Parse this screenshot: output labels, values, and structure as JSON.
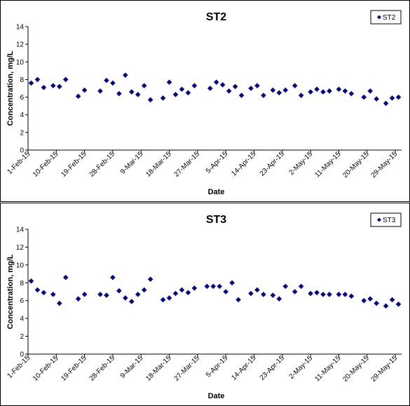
{
  "chart_data": [
    {
      "type": "scatter",
      "title": "ST2",
      "xlabel": "Date",
      "ylabel": "Concentration, mg/L",
      "ylim": [
        0,
        14
      ],
      "yticks": [
        "0",
        "2",
        "4",
        "6",
        "8",
        "10",
        "12",
        "14"
      ],
      "xlim": [
        "2015-02-01",
        "2015-05-31"
      ],
      "xticks": [
        "1-Feb-15",
        "10-Feb-15",
        "19-Feb-15",
        "28-Feb-15",
        "9-Mar-15",
        "18-Mar-15",
        "27-Mar-15",
        "5-Apr-15",
        "14-Apr-15",
        "23-Apr-15",
        "2-May-15",
        "11-May-15",
        "20-May-15",
        "29-May-15"
      ],
      "legend": "top-right",
      "grid": false,
      "color": "#0a0a7a",
      "series": [
        {
          "name": "ST2",
          "x": [
            "2015-02-02",
            "2015-02-04",
            "2015-02-06",
            "2015-02-09",
            "2015-02-11",
            "2015-02-13",
            "2015-02-17",
            "2015-02-19",
            "2015-02-24",
            "2015-02-26",
            "2015-02-28",
            "2015-03-02",
            "2015-03-04",
            "2015-03-06",
            "2015-03-08",
            "2015-03-10",
            "2015-03-12",
            "2015-03-16",
            "2015-03-18",
            "2015-03-20",
            "2015-03-22",
            "2015-03-24",
            "2015-03-26",
            "2015-03-31",
            "2015-04-02",
            "2015-04-04",
            "2015-04-06",
            "2015-04-08",
            "2015-04-10",
            "2015-04-13",
            "2015-04-15",
            "2015-04-17",
            "2015-04-20",
            "2015-04-22",
            "2015-04-24",
            "2015-04-27",
            "2015-04-29",
            "2015-05-02",
            "2015-05-04",
            "2015-05-06",
            "2015-05-08",
            "2015-05-11",
            "2015-05-13",
            "2015-05-15",
            "2015-05-19",
            "2015-05-21",
            "2015-05-23",
            "2015-05-26",
            "2015-05-28",
            "2015-05-30"
          ],
          "values": [
            7.6,
            8.0,
            7.1,
            7.3,
            7.2,
            8.0,
            6.1,
            6.8,
            6.7,
            7.9,
            7.6,
            6.4,
            8.5,
            6.6,
            6.3,
            7.3,
            5.7,
            5.9,
            7.7,
            6.3,
            6.9,
            6.5,
            7.3,
            7.0,
            7.7,
            7.4,
            6.7,
            7.2,
            6.2,
            7.0,
            7.3,
            6.2,
            6.8,
            6.5,
            6.8,
            7.3,
            6.2,
            6.6,
            6.9,
            6.6,
            6.7,
            6.9,
            6.7,
            6.4,
            6.0,
            6.7,
            5.8,
            5.3,
            5.9,
            6.0
          ]
        }
      ]
    },
    {
      "type": "scatter",
      "title": "ST3",
      "xlabel": "Date",
      "ylabel": "Concentration, mg/L",
      "ylim": [
        0,
        14
      ],
      "yticks": [
        "0",
        "2",
        "4",
        "6",
        "8",
        "10",
        "12",
        "14"
      ],
      "xlim": [
        "2015-02-01",
        "2015-05-31"
      ],
      "xticks": [
        "1-Feb-15",
        "10-Feb-15",
        "19-Feb-15",
        "28-Feb-15",
        "9-Mar-15",
        "18-Mar-15",
        "27-Mar-15",
        "5-Apr-15",
        "14-Apr-15",
        "23-Apr-15",
        "2-May-15",
        "11-May-15",
        "20-May-15",
        "29-May-15"
      ],
      "legend": "top-right",
      "grid": false,
      "color": "#0a0a7a",
      "series": [
        {
          "name": "ST3",
          "x": [
            "2015-02-02",
            "2015-02-04",
            "2015-02-06",
            "2015-02-09",
            "2015-02-11",
            "2015-02-13",
            "2015-02-17",
            "2015-02-19",
            "2015-02-24",
            "2015-02-26",
            "2015-02-28",
            "2015-03-02",
            "2015-03-04",
            "2015-03-06",
            "2015-03-08",
            "2015-03-10",
            "2015-03-12",
            "2015-03-16",
            "2015-03-18",
            "2015-03-20",
            "2015-03-22",
            "2015-03-24",
            "2015-03-26",
            "2015-03-30",
            "2015-04-01",
            "2015-04-03",
            "2015-04-05",
            "2015-04-07",
            "2015-04-09",
            "2015-04-13",
            "2015-04-15",
            "2015-04-17",
            "2015-04-20",
            "2015-04-22",
            "2015-04-24",
            "2015-04-27",
            "2015-04-29",
            "2015-05-02",
            "2015-05-04",
            "2015-05-06",
            "2015-05-08",
            "2015-05-11",
            "2015-05-13",
            "2015-05-15",
            "2015-05-19",
            "2015-05-21",
            "2015-05-23",
            "2015-05-26",
            "2015-05-28",
            "2015-05-30"
          ],
          "values": [
            8.2,
            7.2,
            6.9,
            6.7,
            5.7,
            8.6,
            6.2,
            6.7,
            6.7,
            6.6,
            8.6,
            7.1,
            6.3,
            5.9,
            6.7,
            7.2,
            8.4,
            6.1,
            6.3,
            6.8,
            7.2,
            6.9,
            7.4,
            7.6,
            7.6,
            7.6,
            7.0,
            8.0,
            6.1,
            6.8,
            7.2,
            6.7,
            6.6,
            6.2,
            7.6,
            7.0,
            7.6,
            6.8,
            6.9,
            6.7,
            6.7,
            6.7,
            6.7,
            6.5,
            6.0,
            6.2,
            5.7,
            5.4,
            6.1,
            5.6
          ]
        }
      ]
    }
  ]
}
